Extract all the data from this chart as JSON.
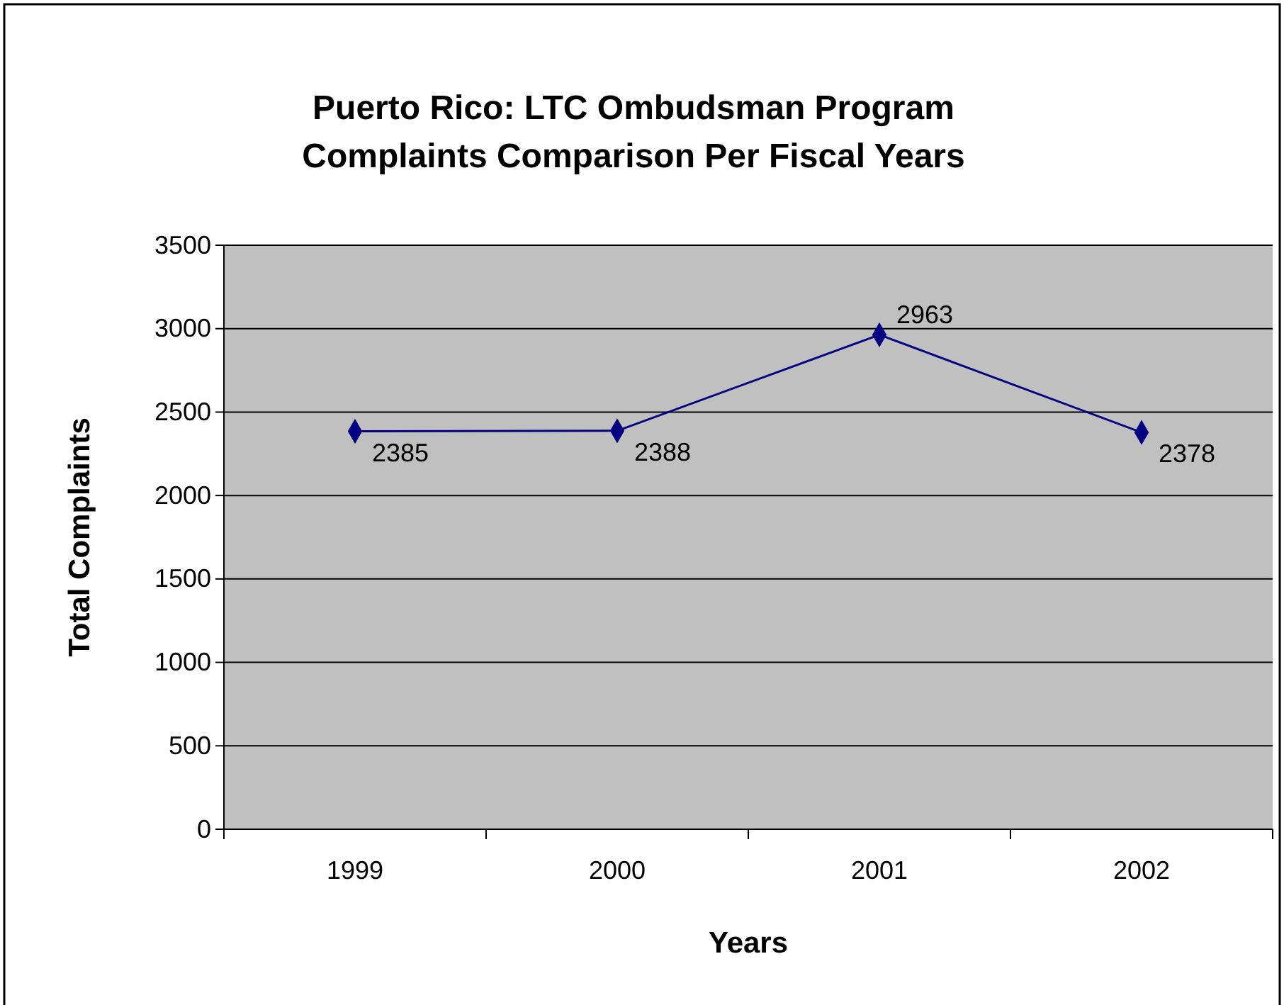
{
  "chart_data": {
    "type": "line",
    "title": "Puerto Rico: LTC Ombudsman Program\nComplaints Comparison Per Fiscal Years",
    "xlabel": "Years",
    "ylabel": "Total Complaints",
    "categories": [
      "1999",
      "2000",
      "2001",
      "2002"
    ],
    "series": [
      {
        "color": "#000080",
        "values": [
          2385,
          2388,
          2963,
          2378
        ]
      }
    ],
    "ylim": [
      0,
      3500
    ],
    "yticks": [
      0,
      500,
      1000,
      1500,
      2000,
      2500,
      3000,
      3500
    ],
    "grid": "y",
    "marker": "diamond",
    "line_style": "solid",
    "data_labels": true
  }
}
